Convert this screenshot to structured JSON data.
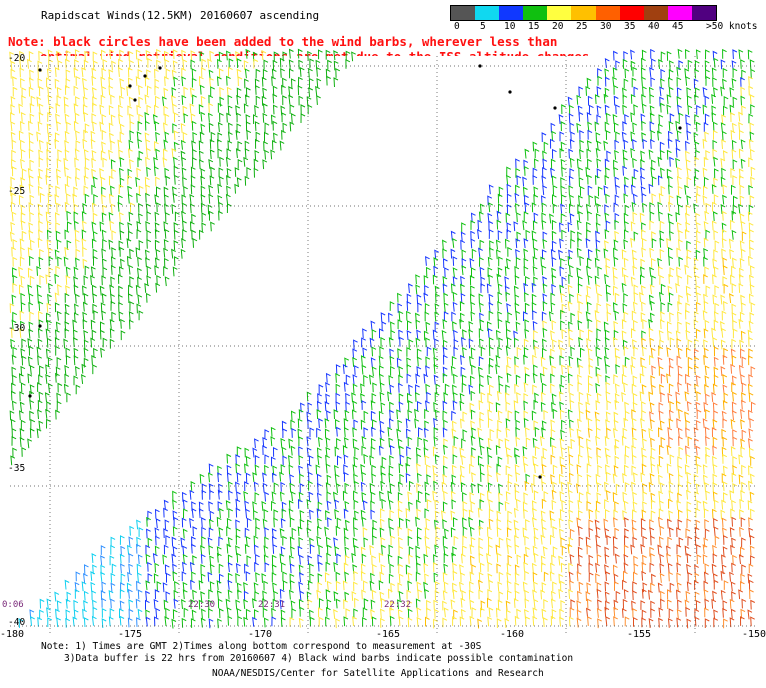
{
  "title": "Rapidscat Winds(12.5KM) 20160607 ascending",
  "note_line1": "Note: black circles have been added to the wind barbs, wherever less than",
  "note_line2": "optimal wind retrieval conditions are met due to the ISS altitude changes.",
  "colorbar": {
    "labels": [
      "0",
      "5",
      "10",
      "15",
      "20",
      "25",
      "30",
      "35",
      "40",
      "45",
      ">50 knots"
    ],
    "colors": [
      "#555555",
      "#10d8f0",
      "#1038ff",
      "#10c010",
      "#ffff40",
      "#ffc000",
      "#ff6000",
      "#ff0000",
      "#a04010",
      "#ff00ff",
      "#500080"
    ]
  },
  "map": {
    "lat_labels": [
      "-20",
      "-25",
      "-30",
      "-35",
      "-40"
    ],
    "lon_labels": [
      "-180",
      "-175",
      "-170",
      "-165",
      "-160",
      "-155",
      "-150"
    ],
    "time_labels": [
      "0:06",
      "22:30",
      "22:31",
      "22:32"
    ]
  },
  "footer": {
    "line1": "Note: 1) Times are GMT 2)Times along bottom correspond to measurement at -30S",
    "line2": "3)Data buffer is 22 hrs from 20160607 4) Black wind barbs indicate possible contamination",
    "line3": "NOAA/NESDIS/Center for Satellite Applications and Research"
  }
}
